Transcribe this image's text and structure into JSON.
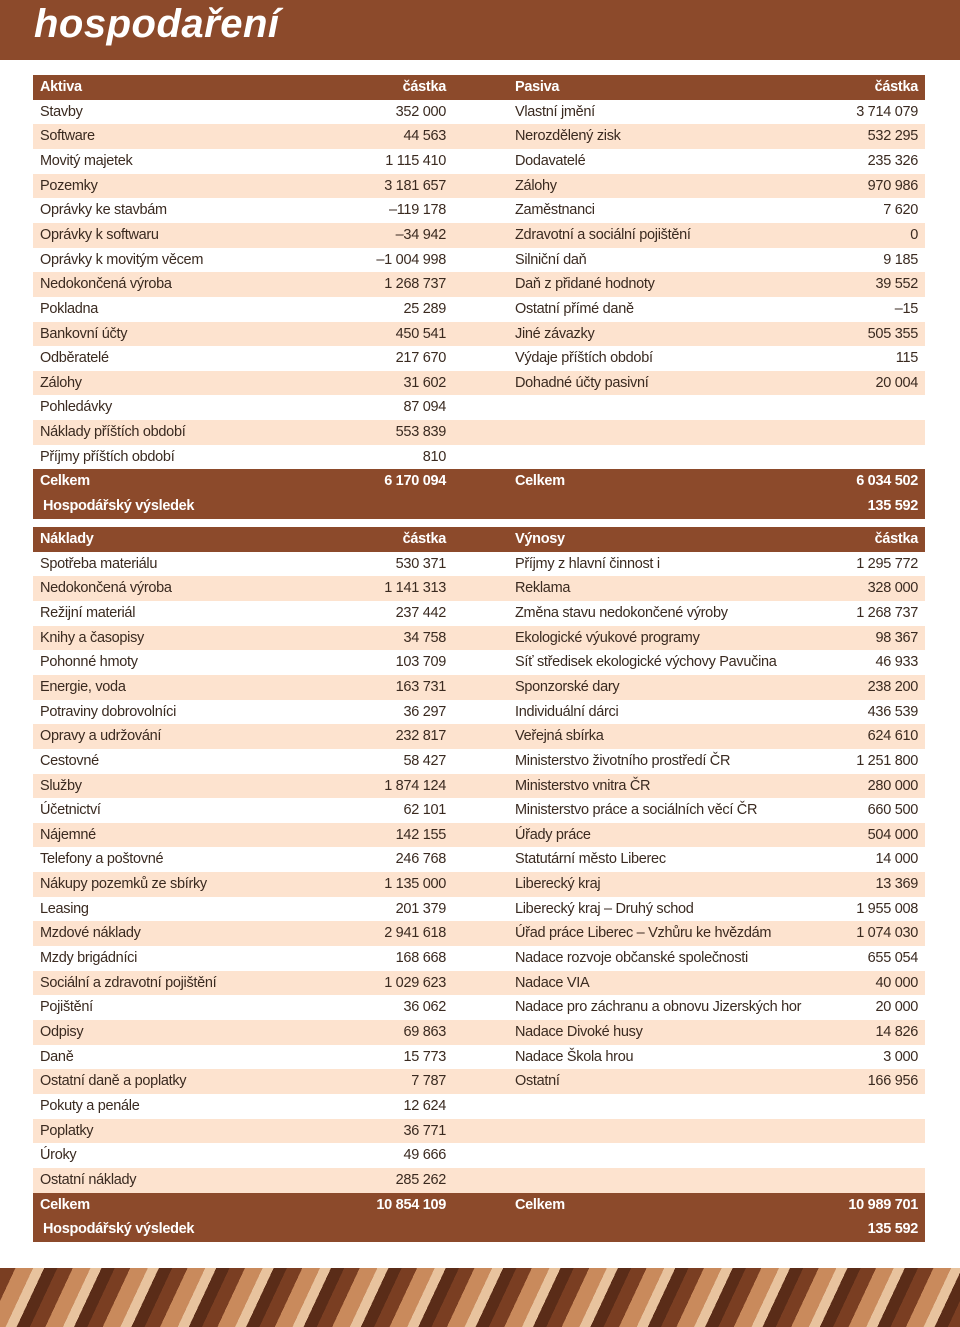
{
  "header": {
    "title": "hospodaření"
  },
  "balance": {
    "left": {
      "header": [
        "Aktiva",
        "částka"
      ],
      "rows": [
        [
          "Stavby",
          "352 000"
        ],
        [
          "Software",
          "44 563"
        ],
        [
          "Movitý majetek",
          "1 115 410"
        ],
        [
          "Pozemky",
          "3 181 657"
        ],
        [
          "Oprávky ke stavbám",
          "–119 178"
        ],
        [
          "Oprávky k softwaru",
          "–34 942"
        ],
        [
          "Oprávky k movitým věcem",
          "–1 004 998"
        ],
        [
          "Nedokončená výroba",
          "1 268 737"
        ],
        [
          "Pokladna",
          "25 289"
        ],
        [
          "Bankovní účty",
          "450 541"
        ],
        [
          "Odběratelé",
          "217 670"
        ],
        [
          "Zálohy",
          "31 602"
        ],
        [
          "Pohledávky",
          "87 094"
        ],
        [
          "Náklady příštích období",
          "553 839"
        ],
        [
          "Příjmy příštích období",
          "810"
        ]
      ],
      "total": [
        "Celkem",
        "6 170 094"
      ]
    },
    "right": {
      "header": [
        "Pasiva",
        "částka"
      ],
      "rows": [
        [
          "Vlastní jmění",
          "3 714 079"
        ],
        [
          "Nerozdělený zisk",
          "532 295"
        ],
        [
          "Dodavatelé",
          "235 326"
        ],
        [
          "Zálohy",
          "970 986"
        ],
        [
          "Zaměstnanci",
          "7 620"
        ],
        [
          "Zdravotní a sociální pojištění",
          "0"
        ],
        [
          "Silniční daň",
          "9 185"
        ],
        [
          "Daň z přidané hodnoty",
          "39 552"
        ],
        [
          "Ostatní přímé daně",
          "–15"
        ],
        [
          "Jiné závazky",
          "505 355"
        ],
        [
          "Výdaje příštích období",
          "115"
        ],
        [
          "Dohadné účty pasivní",
          "20 004"
        ]
      ],
      "total": [
        "Celkem",
        "6 034 502"
      ]
    },
    "result": [
      "Hospodářský výsledek",
      "135 592"
    ]
  },
  "income": {
    "left": {
      "header": [
        "Náklady",
        "částka"
      ],
      "rows": [
        [
          "Spotřeba materiálu",
          "530 371"
        ],
        [
          "Nedokončená výroba",
          "1 141 313"
        ],
        [
          "Režijní materiál",
          "237 442"
        ],
        [
          "Knihy a časopisy",
          "34 758"
        ],
        [
          "Pohonné hmoty",
          "103 709"
        ],
        [
          "Energie, voda",
          "163 731"
        ],
        [
          "Potraviny dobrovolníci",
          "36 297"
        ],
        [
          "Opravy a udržování",
          "232 817"
        ],
        [
          "Cestovné",
          "58 427"
        ],
        [
          "Služby",
          "1 874 124"
        ],
        [
          "Účetnictví",
          "62 101"
        ],
        [
          "Nájemné",
          "142 155"
        ],
        [
          "Telefony a poštovné",
          "246 768"
        ],
        [
          "Nákupy pozemků ze sbírky",
          "1 135 000"
        ],
        [
          "Leasing",
          "201 379"
        ],
        [
          "Mzdové náklady",
          "2 941 618"
        ],
        [
          "Mzdy brigádníci",
          "168 668"
        ],
        [
          "Sociální a zdravotní pojištění",
          "1 029 623"
        ],
        [
          "Pojištění",
          "36 062"
        ],
        [
          "Odpisy",
          "69 863"
        ],
        [
          "Daně",
          "15 773"
        ],
        [
          "Ostatní daně a poplatky",
          "7 787"
        ],
        [
          "Pokuty a penále",
          "12 624"
        ],
        [
          "Poplatky",
          "36 771"
        ],
        [
          "Úroky",
          "49 666"
        ],
        [
          "Ostatní náklady",
          "285 262"
        ]
      ],
      "total": [
        "Celkem",
        "10 854 109"
      ]
    },
    "right": {
      "header": [
        "Výnosy",
        "částka"
      ],
      "rows": [
        [
          "Příjmy z hlavní činnost i",
          "1 295 772"
        ],
        [
          "Reklama",
          "328 000"
        ],
        [
          "Změna stavu nedokončené výroby",
          "1 268 737"
        ],
        [
          "Ekologické výukové programy",
          "98 367"
        ],
        [
          "Síť středisek ekologické výchovy Pavučina",
          "46 933"
        ],
        [
          "Sponzorské dary",
          "238 200"
        ],
        [
          "Individuální dárci",
          "436 539"
        ],
        [
          "Veřejná sbírka",
          "624 610"
        ],
        [
          "Ministerstvo životního prostředí ČR",
          "1 251 800"
        ],
        [
          "Ministerstvo vnitra ČR",
          "280 000"
        ],
        [
          "Ministerstvo práce a sociálních věcí ČR",
          "660 500"
        ],
        [
          "Úřady práce",
          "504 000"
        ],
        [
          "Statutární město Liberec",
          "14 000"
        ],
        [
          "Liberecký kraj",
          "13 369"
        ],
        [
          "Liberecký kraj – Druhý schod",
          "1 955 008"
        ],
        [
          "Úřad práce Liberec – Vzhůru ke hvězdám",
          "1 074 030"
        ],
        [
          "Nadace rozvoje občanské společnosti",
          "655 054"
        ],
        [
          "Nadace VIA",
          "40 000"
        ],
        [
          "Nadace pro záchranu a obnovu Jizerských hor",
          "20 000"
        ],
        [
          "Nadace Divoké husy",
          "14 826"
        ],
        [
          "Nadace Škola hrou",
          "3 000"
        ],
        [
          "Ostatní",
          "166 956"
        ]
      ],
      "total": [
        "Celkem",
        "10 989 701"
      ]
    },
    "result": [
      "Hospodářský výsledek",
      "135 592"
    ]
  }
}
